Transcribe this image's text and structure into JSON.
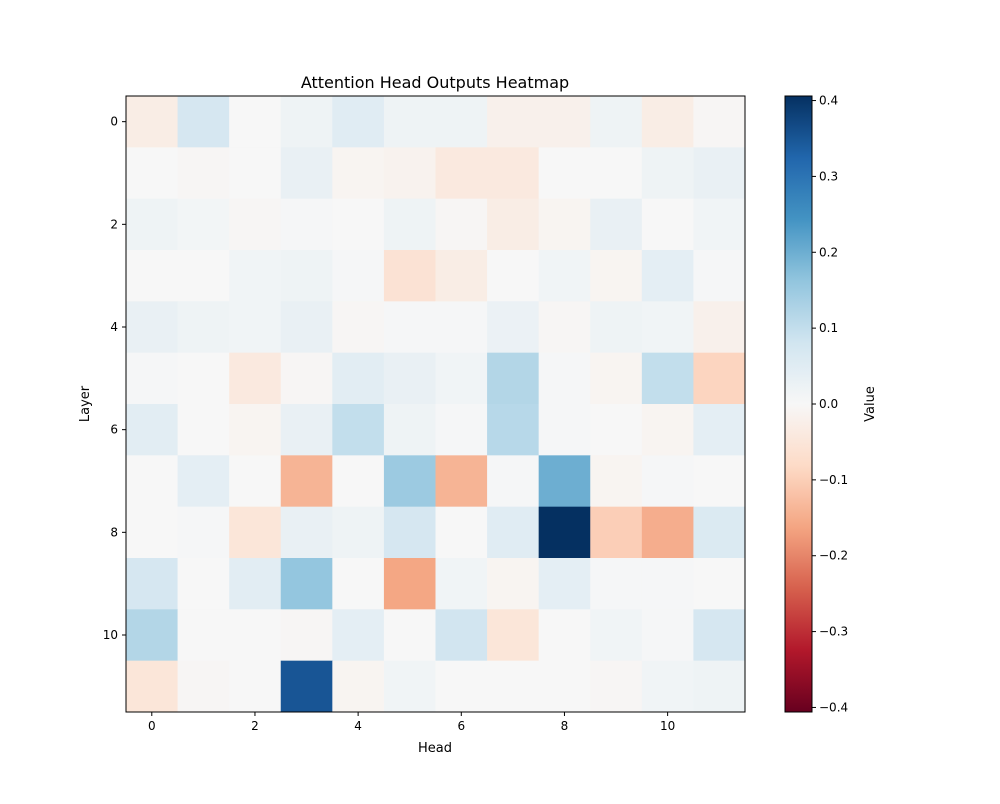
{
  "chart_data": {
    "type": "heatmap",
    "title": "Attention Head Outputs Heatmap",
    "xlabel": "Head",
    "ylabel": "Layer",
    "colorbar_label": "Value",
    "colormap": "RdBu",
    "vmin": -0.406,
    "vmax": 0.406,
    "x_ticks": [
      0,
      2,
      4,
      6,
      8,
      10
    ],
    "y_ticks": [
      0,
      2,
      4,
      6,
      8,
      10
    ],
    "colorbar_ticks": [
      0.4,
      0.3,
      0.2,
      0.1,
      0.0,
      -0.1,
      -0.2,
      -0.3,
      -0.4
    ],
    "colorbar_tick_labels": [
      "0.4",
      "0.3",
      "0.2",
      "0.1",
      "0.0",
      "−0.1",
      "−0.2",
      "−0.3",
      "−0.4"
    ],
    "rows": 12,
    "cols": 12,
    "values": [
      [
        -0.03,
        0.07,
        0.0,
        0.02,
        0.05,
        0.02,
        0.02,
        -0.02,
        -0.02,
        0.02,
        -0.03,
        -0.005
      ],
      [
        0.0,
        -0.005,
        0.0,
        0.03,
        -0.01,
        -0.015,
        -0.04,
        -0.04,
        0.0,
        0.0,
        0.02,
        0.03
      ],
      [
        0.02,
        0.01,
        -0.005,
        0.005,
        0.0,
        0.02,
        -0.005,
        -0.03,
        -0.01,
        0.03,
        0.0,
        0.015
      ],
      [
        0.0,
        0.0,
        0.015,
        0.02,
        0.005,
        -0.06,
        -0.03,
        0.0,
        0.015,
        -0.01,
        0.04,
        0.005
      ],
      [
        0.03,
        0.02,
        0.015,
        0.03,
        -0.005,
        0.005,
        0.005,
        0.025,
        -0.005,
        0.02,
        0.015,
        -0.02
      ],
      [
        0.005,
        0.0,
        -0.04,
        -0.005,
        0.045,
        0.03,
        0.015,
        0.12,
        0.005,
        -0.01,
        0.1,
        -0.09
      ],
      [
        0.045,
        0.0,
        -0.01,
        0.03,
        0.1,
        0.02,
        0.005,
        0.115,
        0.005,
        0.0,
        -0.01,
        0.04
      ],
      [
        0.0,
        0.04,
        0.0,
        -0.14,
        0.0,
        0.15,
        -0.14,
        0.005,
        0.2,
        -0.01,
        0.005,
        0.0
      ],
      [
        0.0,
        0.005,
        -0.05,
        0.03,
        0.02,
        0.07,
        0.0,
        0.05,
        0.406,
        -0.1,
        -0.15,
        0.06
      ],
      [
        0.07,
        0.0,
        0.045,
        0.16,
        0.0,
        -0.16,
        0.015,
        -0.01,
        0.04,
        0.005,
        0.005,
        0.0
      ],
      [
        0.12,
        0.0,
        0.0,
        -0.005,
        0.04,
        0.0,
        0.08,
        -0.05,
        0.0,
        0.015,
        0.005,
        0.07
      ],
      [
        -0.05,
        -0.005,
        0.0,
        0.35,
        -0.01,
        0.015,
        0.0,
        0.0,
        0.0,
        -0.005,
        0.015,
        0.02
      ]
    ]
  }
}
